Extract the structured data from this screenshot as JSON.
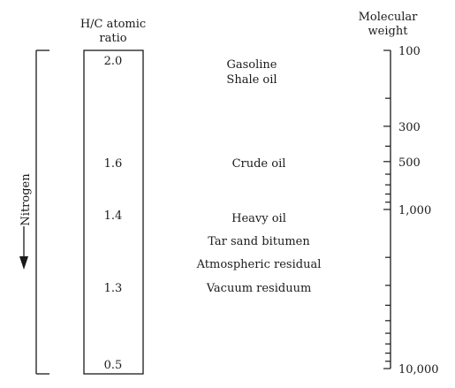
{
  "hc_column": {
    "header_line1": "H/C atomic",
    "header_line2": "ratio",
    "values": [
      {
        "label": "2.0",
        "value": 2.0
      },
      {
        "label": "1.6",
        "value": 1.6
      },
      {
        "label": "1.4",
        "value": 1.4
      },
      {
        "label": "1.3",
        "value": 1.3
      },
      {
        "label": "0.5",
        "value": 0.5
      }
    ]
  },
  "products": [
    {
      "name": "Gasoline"
    },
    {
      "name": "Shale oil"
    },
    {
      "name": "Crude oil"
    },
    {
      "name": "Heavy oil"
    },
    {
      "name": "Tar sand bitumen"
    },
    {
      "name": "Atmospheric residual"
    },
    {
      "name": "Vacuum residuum"
    }
  ],
  "mw_axis": {
    "header_line1": "Molecular",
    "header_line2": "weight",
    "scale": "log",
    "range": [
      100,
      10000
    ],
    "labels": [
      {
        "text": "100",
        "value": 100
      },
      {
        "text": "300",
        "value": 300
      },
      {
        "text": "500",
        "value": 500
      },
      {
        "text": "1,000",
        "value": 1000
      },
      {
        "text": "10,000",
        "value": 10000
      }
    ]
  },
  "nitrogen": {
    "label": "Nitrogen",
    "direction": "increasing downward"
  }
}
